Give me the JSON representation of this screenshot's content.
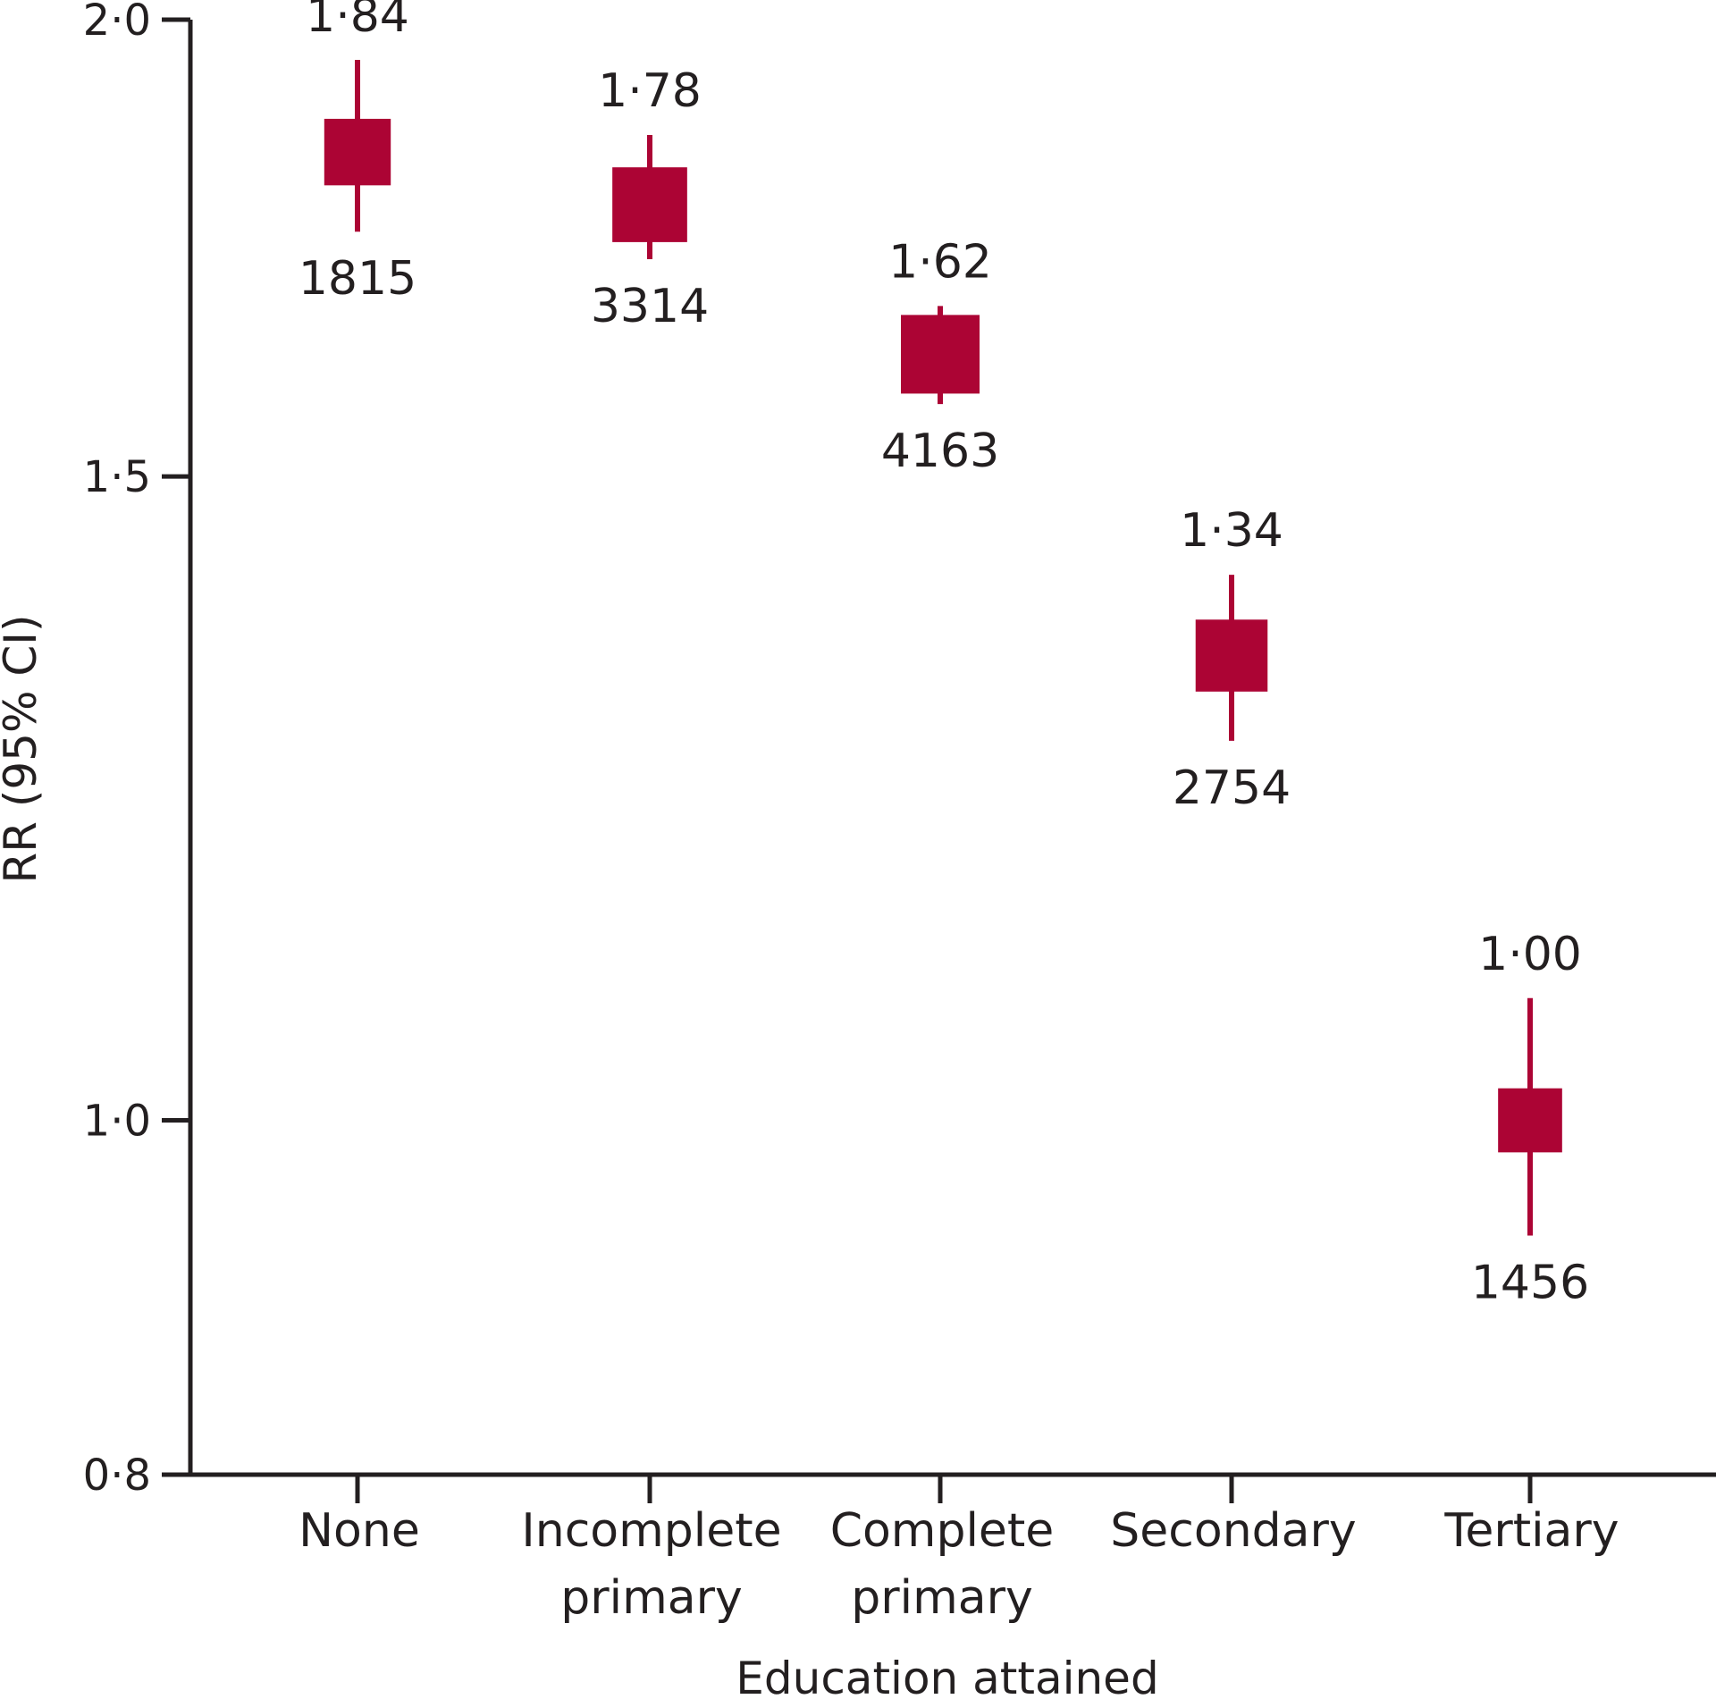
{
  "chart_data": {
    "type": "scatter",
    "xlabel": "Education attained",
    "ylabel": "RR (95% CI)",
    "ylim": [
      0.8,
      2.0
    ],
    "yscale": "log",
    "yticks": [
      {
        "value": 2.0,
        "label": "2·0"
      },
      {
        "value": 1.5,
        "label": "1·5"
      },
      {
        "value": 1.0,
        "label": "1·0"
      },
      {
        "value": 0.8,
        "label": "0·8"
      }
    ],
    "grid": false,
    "legend": "none",
    "marker": "square",
    "color": "#ac0434",
    "categories": [
      {
        "label_lines": [
          "None"
        ],
        "rr": 1.84,
        "rr_label": "1·84",
        "ci_low": 1.75,
        "ci_high": 1.95,
        "n": 1815,
        "n_label": "1815"
      },
      {
        "label_lines": [
          "Incomplete",
          "primary"
        ],
        "rr": 1.78,
        "rr_label": "1·78",
        "ci_low": 1.72,
        "ci_high": 1.86,
        "n": 3314,
        "n_label": "3314"
      },
      {
        "label_lines": [
          "Complete",
          "primary"
        ],
        "rr": 1.62,
        "rr_label": "1·62",
        "ci_low": 1.57,
        "ci_high": 1.67,
        "n": 4163,
        "n_label": "4163"
      },
      {
        "label_lines": [
          "Secondary"
        ],
        "rr": 1.34,
        "rr_label": "1·34",
        "ci_low": 1.27,
        "ci_high": 1.41,
        "n": 2754,
        "n_label": "2754"
      },
      {
        "label_lines": [
          "Tertiary"
        ],
        "rr": 1.0,
        "rr_label": "1·00",
        "ci_low": 0.93,
        "ci_high": 1.08,
        "n": 1456,
        "n_label": "1456"
      }
    ]
  }
}
